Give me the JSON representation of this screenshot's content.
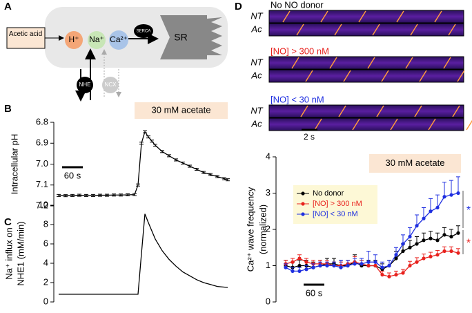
{
  "panel_labels": [
    "A",
    "B",
    "C",
    "D"
  ],
  "diagram": {
    "source": "Acetic acid",
    "ions": [
      "H⁺",
      "Na⁺",
      "Ca²⁺"
    ],
    "pump": "SERCA",
    "store": "SR",
    "exchangers": [
      "NHE",
      "NCX"
    ]
  },
  "kymographs": {
    "groups": [
      {
        "title": "No NO donor",
        "color": "#000000"
      },
      {
        "title": "[NO] > 300 nM",
        "color": "#e8211d"
      },
      {
        "title": "[NO] < 30 nM",
        "color": "#1f2fe0"
      }
    ],
    "rows": [
      "NT",
      "Ac"
    ],
    "scale_bar": "2 s"
  },
  "chart_data": [
    {
      "type": "line",
      "ylabel": [
        "Intracellular pH"
      ],
      "annotation": "30 mM acetate",
      "scale_bar": "60 s",
      "color": "#000000",
      "x": [
        0,
        20,
        40,
        60,
        80,
        100,
        120,
        140,
        160,
        180,
        200,
        220,
        230,
        240,
        250,
        260,
        270,
        280,
        300,
        320,
        340,
        360,
        380,
        400,
        420,
        440,
        460,
        480,
        490
      ],
      "values": [
        7.15,
        7.151,
        7.15,
        7.149,
        7.15,
        7.15,
        7.149,
        7.149,
        7.148,
        7.148,
        7.147,
        7.146,
        7.1,
        6.9,
        6.845,
        6.87,
        6.89,
        6.91,
        6.94,
        6.96,
        6.98,
        6.995,
        7.01,
        7.025,
        7.04,
        7.05,
        7.06,
        7.07,
        7.075
      ],
      "errors": [
        0.005,
        0.005,
        0.005,
        0.005,
        0.005,
        0.005,
        0.005,
        0.005,
        0.005,
        0.005,
        0.005,
        0.005,
        0.005,
        0.005,
        0.005,
        0.005,
        0.005,
        0.005,
        0.005,
        0.005,
        0.005,
        0.005,
        0.005,
        0.005,
        0.005,
        0.005,
        0.005,
        0.005,
        0.005
      ],
      "xlim": [
        -10,
        500
      ],
      "ylim": [
        7.2,
        6.8
      ],
      "yticks": [
        6.8,
        6.9,
        {
          "value": 7,
          "label": "7.0"
        },
        7.1,
        7.2
      ]
    },
    {
      "type": "line",
      "ylabel": [
        "Na⁺ influx on",
        "NHE1 (mM/min)"
      ],
      "color": "#000000",
      "x": [
        0,
        40,
        80,
        120,
        160,
        200,
        230,
        240,
        250,
        260,
        280,
        300,
        320,
        340,
        360,
        380,
        400,
        420,
        440,
        460,
        490
      ],
      "values": [
        0.8,
        0.8,
        0.8,
        0.8,
        0.8,
        0.8,
        0.8,
        5,
        9.1,
        8.2,
        6.5,
        5.3,
        4.4,
        3.7,
        3.1,
        2.7,
        2.3,
        2,
        1.8,
        1.6,
        1.5
      ],
      "xlim": [
        -10,
        500
      ],
      "ylim": [
        0,
        10
      ],
      "yticks": [
        0,
        2,
        4,
        6,
        8,
        10
      ]
    },
    {
      "type": "line",
      "ylabel": [
        "Ca²⁺ wave frequency",
        "(normalized)"
      ],
      "annotation": "30 mM acetate",
      "scale_bar": "60 s",
      "x": [
        0,
        20,
        40,
        60,
        80,
        100,
        120,
        140,
        160,
        180,
        200,
        220,
        240,
        260,
        280,
        300,
        320,
        340,
        360,
        380,
        400,
        420,
        440,
        460,
        480,
        500
      ],
      "series": [
        {
          "name": "No donor",
          "color": "#000000",
          "values": [
            1,
            0.95,
            1,
            1,
            0.95,
            1,
            1.05,
            1.05,
            1,
            1,
            1.1,
            1,
            1,
            1,
            0.9,
            1,
            1.2,
            1.4,
            1.5,
            1.6,
            1.7,
            1.75,
            1.7,
            1.85,
            1.8,
            1.9
          ],
          "errors": [
            0.15,
            0.15,
            0.15,
            0.15,
            0.15,
            0.15,
            0.15,
            0.15,
            0.15,
            0.15,
            0.2,
            0.15,
            0.15,
            0.15,
            0.15,
            0.15,
            0.2,
            0.2,
            0.2,
            0.2,
            0.2,
            0.2,
            0.2,
            0.2,
            0.2,
            0.2
          ]
        },
        {
          "name": "[NO] > 300 nM",
          "color": "#e8211d",
          "values": [
            1.05,
            1.1,
            1.2,
            1.1,
            1.05,
            1.05,
            1.05,
            1,
            1,
            1.05,
            1.1,
            1.05,
            1,
            1,
            0.75,
            0.7,
            0.75,
            0.8,
            1,
            1.1,
            1.2,
            1.25,
            1.3,
            1.4,
            1.4,
            1.35
          ],
          "errors": [
            0.1,
            0.1,
            0.1,
            0.1,
            0.1,
            0.1,
            0.1,
            0.1,
            0.1,
            0.1,
            0.15,
            0.1,
            0.1,
            0.1,
            0.1,
            0.1,
            0.1,
            0.1,
            0.12,
            0.12,
            0.12,
            0.12,
            0.12,
            0.12,
            0.12,
            0.12
          ]
        },
        {
          "name": "[NO] < 30 nM",
          "color": "#1f2fe0",
          "values": [
            0.95,
            0.85,
            0.85,
            0.9,
            0.95,
            1,
            1,
            1,
            0.95,
            1,
            1.05,
            1.05,
            1.1,
            1.1,
            0.95,
            1,
            1.3,
            1.6,
            1.8,
            2.1,
            2.3,
            2.5,
            2.6,
            2.9,
            2.95,
            3
          ],
          "errors": [
            0.1,
            0.1,
            0.1,
            0.1,
            0.1,
            0.1,
            0.1,
            0.1,
            0.2,
            0.15,
            0.15,
            0.15,
            0.3,
            0.2,
            0.15,
            0.15,
            0.2,
            0.25,
            0.25,
            0.3,
            0.3,
            0.35,
            0.35,
            0.4,
            0.4,
            0.45
          ]
        }
      ],
      "significance": [
        {
          "text": "*",
          "color": "#1f2fe0"
        },
        {
          "text": "*",
          "color": "#e8211d"
        }
      ],
      "xlim": [
        -20,
        520
      ],
      "ylim": [
        0,
        4
      ],
      "yticks": [
        0,
        1,
        2,
        3,
        4
      ]
    }
  ]
}
